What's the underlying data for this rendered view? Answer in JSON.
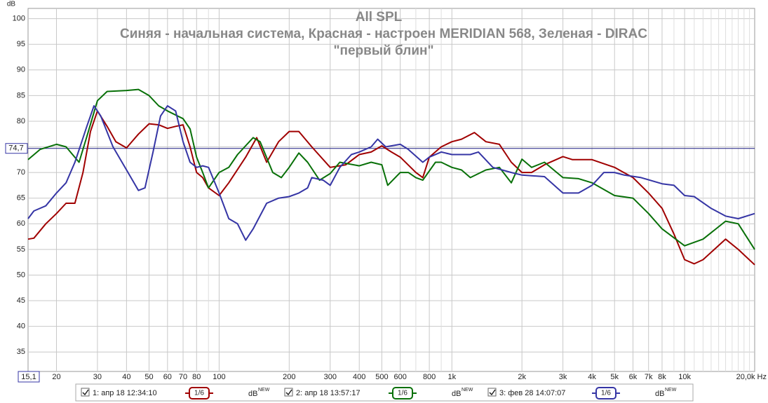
{
  "chart_data": {
    "type": "line",
    "title": "All SPL",
    "subtitle": "Синяя - начальная система, Красная - настроен MERIDIAN 568, Зеленая - DIRAC",
    "subtitle2": "\"первый блин\"",
    "y_label": "dB",
    "log_x": true,
    "grid": true,
    "xlim": [
      15.1,
      20000
    ],
    "ylim": [
      31.2,
      102
    ],
    "xticks": [
      {
        "value": 15.1,
        "label": "15,1"
      },
      20,
      30,
      40,
      50,
      60,
      70,
      80,
      100,
      200,
      300,
      400,
      500,
      600,
      800,
      {
        "value": 1000,
        "label": "1k"
      },
      {
        "value": 2000,
        "label": "2k"
      },
      {
        "value": 3000,
        "label": "3k"
      },
      {
        "value": 4000,
        "label": "4k"
      },
      {
        "value": 5000,
        "label": "5k"
      },
      {
        "value": 6000,
        "label": "6k"
      },
      {
        "value": 7000,
        "label": "7k"
      },
      {
        "value": 8000,
        "label": "8k"
      },
      {
        "value": 10000,
        "label": "10k"
      },
      {
        "value": 20000,
        "label": "20,0k Hz"
      }
    ],
    "xgrid_minor": [
      90,
      700,
      900,
      9000,
      11000,
      12000,
      13000,
      14000,
      15000,
      16000,
      17000,
      18000,
      19000
    ],
    "yticks": [
      35,
      40,
      45,
      50,
      55,
      60,
      65,
      70,
      75,
      80,
      85,
      90,
      95,
      100
    ],
    "marker_line": {
      "value": 74.7,
      "label": "74,7"
    },
    "series": [
      {
        "name": "1: апр 18 12:34:10",
        "smoothing": "1/6",
        "unit": "dB",
        "badge": "NEW",
        "color": "#a00000",
        "x": [
          15.1,
          16,
          18,
          20,
          22,
          24,
          26,
          28,
          30,
          33,
          36,
          40,
          45,
          50,
          55,
          60,
          65,
          70,
          75,
          80,
          85,
          90,
          100,
          110,
          130,
          145,
          160,
          180,
          200,
          220,
          250,
          300,
          350,
          400,
          450,
          500,
          550,
          600,
          700,
          750,
          800,
          900,
          1000,
          1100,
          1250,
          1400,
          1600,
          1800,
          2000,
          2200,
          2500,
          3000,
          3300,
          4000,
          5000,
          6000,
          7000,
          8000,
          9000,
          10000,
          11000,
          12000,
          15000,
          17000,
          20000
        ],
        "values": [
          57,
          57.2,
          60,
          62,
          64,
          64,
          70,
          78,
          82,
          79,
          76,
          74.8,
          77.5,
          79.5,
          79.3,
          78.6,
          79,
          79.3,
          75,
          70,
          69,
          67,
          65.5,
          68,
          73,
          76.8,
          72,
          76,
          78,
          78,
          75,
          71,
          71.5,
          73.5,
          74,
          75.2,
          74,
          73,
          70,
          69,
          73,
          75,
          76,
          76.5,
          77.8,
          76,
          75.5,
          72,
          70,
          70,
          71.5,
          73.1,
          72.5,
          72.5,
          71,
          69,
          66,
          63,
          58,
          53,
          52.2,
          53,
          57,
          55,
          52
        ]
      },
      {
        "name": "2: апр 18 13:57:17",
        "smoothing": "1/6",
        "unit": "dB",
        "badge": "NEW",
        "color": "#087008",
        "x": [
          15.1,
          17,
          20,
          22,
          25,
          27,
          30,
          33,
          40,
          45,
          50,
          55,
          60,
          70,
          75,
          80,
          85,
          90,
          100,
          110,
          120,
          140,
          150,
          170,
          185,
          200,
          220,
          240,
          270,
          300,
          330,
          400,
          450,
          500,
          530,
          600,
          650,
          700,
          750,
          850,
          900,
          1000,
          1100,
          1200,
          1400,
          1600,
          1800,
          2000,
          2200,
          2500,
          3000,
          3500,
          4000,
          5000,
          6000,
          7000,
          8000,
          10000,
          12000,
          15000,
          17000,
          20000
        ],
        "values": [
          72.5,
          74.5,
          75.5,
          75,
          72,
          77,
          84,
          85.8,
          86,
          86.2,
          85,
          83,
          82,
          80.5,
          78.5,
          73,
          70,
          67,
          70,
          71,
          73.5,
          76.8,
          76,
          70,
          69,
          71,
          73.8,
          72,
          68.5,
          69.8,
          72,
          71.3,
          72,
          71.5,
          67.5,
          70,
          70,
          69,
          68.5,
          72,
          72,
          71,
          70.5,
          69,
          70.5,
          71,
          68,
          72.6,
          71,
          72,
          69,
          68.8,
          68,
          65.5,
          65,
          62,
          59,
          55.7,
          57,
          60.5,
          60,
          55
        ]
      },
      {
        "name": "3: фев 28 14:07:07",
        "smoothing": "1/6",
        "unit": "dB",
        "badge": "NEW",
        "color": "#3535a5",
        "x": [
          15.1,
          16,
          18,
          20,
          22,
          24,
          27,
          29,
          31,
          35,
          40,
          45,
          48,
          52,
          56,
          60,
          65,
          70,
          75,
          80,
          85,
          90,
          100,
          110,
          120,
          130,
          140,
          160,
          180,
          200,
          220,
          240,
          250,
          280,
          300,
          330,
          370,
          400,
          450,
          480,
          520,
          600,
          650,
          750,
          800,
          900,
          1000,
          1200,
          1300,
          1500,
          1800,
          2000,
          2500,
          3000,
          3500,
          4000,
          4500,
          5000,
          5500,
          6500,
          8000,
          9000,
          10000,
          11000,
          13000,
          15000,
          17000,
          20000
        ],
        "values": [
          61,
          62.5,
          63.5,
          66,
          68,
          72,
          79,
          83,
          81,
          75,
          70.5,
          66.5,
          67,
          74,
          81,
          83,
          82,
          76,
          72,
          71,
          71.3,
          71,
          66,
          61,
          60,
          56.8,
          59,
          64,
          65,
          65.3,
          66,
          67,
          69,
          68.5,
          67.5,
          71,
          73.5,
          74,
          75,
          76.5,
          75,
          75.5,
          74.5,
          72,
          73,
          74,
          73.5,
          73.5,
          74,
          71,
          70,
          69.5,
          69.2,
          66,
          66,
          67.5,
          70,
          70,
          69.5,
          69,
          67.8,
          67.5,
          65.5,
          65.3,
          63,
          61.5,
          61,
          62
        ]
      }
    ]
  }
}
